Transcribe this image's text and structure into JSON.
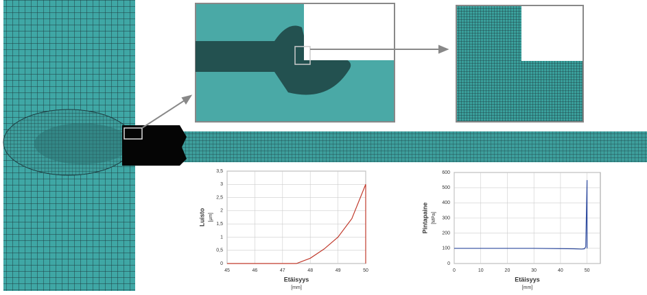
{
  "chart_data": [
    {
      "type": "line",
      "ylabel": "Luisto",
      "yunit": "[µm]",
      "xlabel": "Etäisyys",
      "xunit": "[mm]",
      "x": [
        45,
        46,
        47,
        47.5,
        48,
        48.5,
        49,
        49.5,
        50,
        50
      ],
      "series": [
        {
          "color": "#c0392b",
          "values": [
            0,
            0,
            0,
            0,
            0.2,
            0.55,
            1.0,
            1.7,
            3.0,
            0
          ]
        }
      ],
      "xlim": [
        45,
        50
      ],
      "xticks": [
        45,
        46,
        47,
        48,
        49,
        50
      ],
      "ylim": [
        0,
        3.5
      ],
      "yticks": [
        0,
        {
          "value": 0.5,
          "label": "0,5"
        },
        1,
        {
          "value": 1.5,
          "label": "1,5"
        },
        2,
        {
          "value": 2.5,
          "label": "2,5"
        },
        3,
        {
          "value": 3.5,
          "label": "3,5"
        }
      ],
      "grid": true
    },
    {
      "type": "line",
      "ylabel": "Pintapaine",
      "yunit": "[MPa]",
      "xlabel": "Etäisyys",
      "xunit": "[mm]",
      "x": [
        0,
        10,
        20,
        30,
        40,
        45,
        48,
        49,
        49.5,
        50,
        50
      ],
      "series": [
        {
          "color": "#2e4a9e",
          "values": [
            100,
            100,
            100,
            100,
            98,
            97,
            95,
            97,
            110,
            550,
            100
          ]
        }
      ],
      "xlim": [
        0,
        55
      ],
      "xticks": [
        0,
        10,
        20,
        30,
        40,
        50
      ],
      "ylim": [
        0,
        600
      ],
      "yticks": [
        0,
        100,
        200,
        300,
        400,
        500,
        600
      ],
      "grid": true
    }
  ]
}
